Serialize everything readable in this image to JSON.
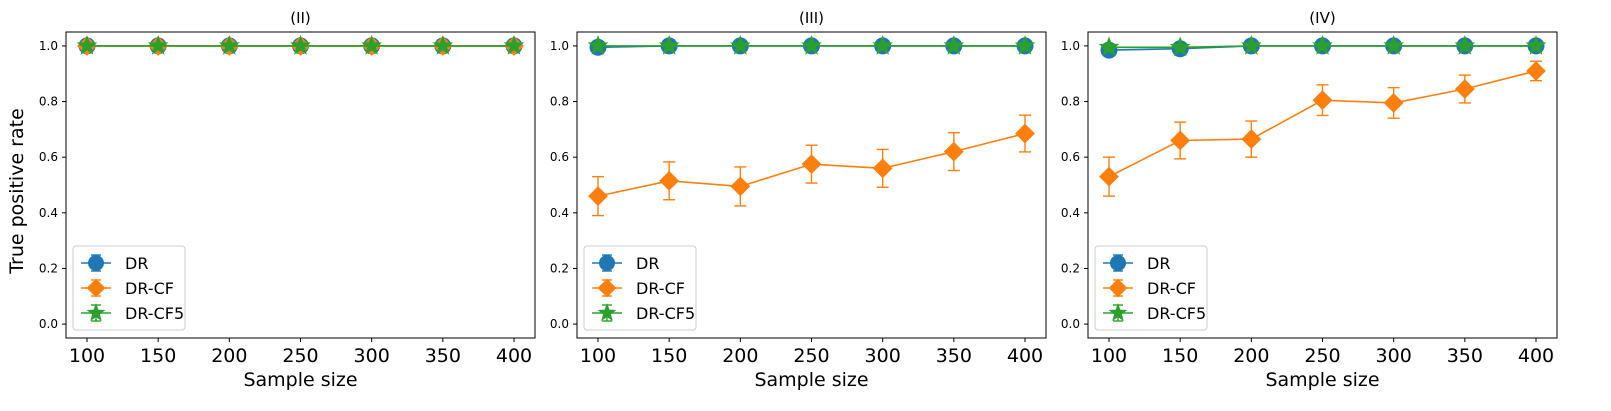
{
  "figure": {
    "ylabel": "True positive rate"
  },
  "chart_data": [
    {
      "type": "line",
      "title": "(II)",
      "xlabel": "Sample size",
      "ylabel": "True positive rate",
      "x": [
        100,
        150,
        200,
        250,
        300,
        350,
        400
      ],
      "xticks": [
        "100",
        "150",
        "200",
        "250",
        "300",
        "350",
        "400"
      ],
      "yticks": [
        "0.0",
        "0.2",
        "0.4",
        "0.6",
        "0.8",
        "1.0"
      ],
      "ylim": [
        -0.05,
        1.05
      ],
      "grid": false,
      "legend_position": "lower-left",
      "series": [
        {
          "name": "DR",
          "color": "#1f77b4",
          "marker": "circle",
          "values": [
            1.0,
            1.0,
            1.0,
            1.0,
            1.0,
            1.0,
            1.0
          ],
          "errors": [
            0,
            0,
            0,
            0,
            0,
            0,
            0
          ]
        },
        {
          "name": "DR-CF",
          "color": "#ff7f0e",
          "marker": "diamond",
          "values": [
            1.0,
            1.0,
            1.0,
            1.0,
            1.0,
            1.0,
            1.0
          ],
          "errors": [
            0,
            0,
            0,
            0,
            0,
            0,
            0
          ]
        },
        {
          "name": "DR-CF5",
          "color": "#2ca02c",
          "marker": "star",
          "values": [
            1.0,
            1.0,
            1.0,
            1.0,
            1.0,
            1.0,
            1.0
          ],
          "errors": [
            0,
            0,
            0,
            0,
            0,
            0,
            0
          ]
        }
      ]
    },
    {
      "type": "line",
      "title": "(III)",
      "xlabel": "Sample size",
      "ylabel": "",
      "x": [
        100,
        150,
        200,
        250,
        300,
        350,
        400
      ],
      "xticks": [
        "100",
        "150",
        "200",
        "250",
        "300",
        "350",
        "400"
      ],
      "yticks": [
        "0.0",
        "0.2",
        "0.4",
        "0.6",
        "0.8",
        "1.0"
      ],
      "ylim": [
        -0.05,
        1.05
      ],
      "grid": false,
      "legend_position": "lower-left",
      "series": [
        {
          "name": "DR",
          "color": "#1f77b4",
          "marker": "circle",
          "values": [
            0.995,
            1.0,
            1.0,
            1.0,
            1.0,
            1.0,
            1.0
          ],
          "errors": [
            0.005,
            0,
            0,
            0,
            0,
            0,
            0
          ]
        },
        {
          "name": "DR-CF",
          "color": "#ff7f0e",
          "marker": "diamond",
          "values": [
            0.46,
            0.515,
            0.495,
            0.575,
            0.56,
            0.62,
            0.685
          ],
          "errors": [
            0.07,
            0.068,
            0.07,
            0.068,
            0.068,
            0.068,
            0.066
          ]
        },
        {
          "name": "DR-CF5",
          "color": "#2ca02c",
          "marker": "star",
          "values": [
            1.0,
            1.0,
            1.0,
            1.0,
            1.0,
            1.0,
            1.0
          ],
          "errors": [
            0,
            0,
            0,
            0,
            0,
            0,
            0
          ]
        }
      ]
    },
    {
      "type": "line",
      "title": "(IV)",
      "xlabel": "Sample size",
      "ylabel": "",
      "x": [
        100,
        150,
        200,
        250,
        300,
        350,
        400
      ],
      "xticks": [
        "100",
        "150",
        "200",
        "250",
        "300",
        "350",
        "400"
      ],
      "yticks": [
        "0.0",
        "0.2",
        "0.4",
        "0.6",
        "0.8",
        "1.0"
      ],
      "ylim": [
        -0.05,
        1.05
      ],
      "grid": false,
      "legend_position": "lower-left",
      "series": [
        {
          "name": "DR",
          "color": "#1f77b4",
          "marker": "circle",
          "values": [
            0.985,
            0.99,
            1.0,
            1.0,
            1.0,
            1.0,
            1.0
          ],
          "errors": [
            0.012,
            0.01,
            0,
            0,
            0,
            0,
            0
          ]
        },
        {
          "name": "DR-CF",
          "color": "#ff7f0e",
          "marker": "diamond",
          "values": [
            0.53,
            0.66,
            0.665,
            0.805,
            0.795,
            0.845,
            0.91
          ],
          "errors": [
            0.07,
            0.066,
            0.065,
            0.055,
            0.055,
            0.05,
            0.035
          ]
        },
        {
          "name": "DR-CF5",
          "color": "#2ca02c",
          "marker": "star",
          "values": [
            0.995,
            0.995,
            1.0,
            1.0,
            1.0,
            1.0,
            1.0
          ],
          "errors": [
            0.005,
            0.005,
            0,
            0,
            0,
            0,
            0
          ]
        }
      ]
    }
  ]
}
